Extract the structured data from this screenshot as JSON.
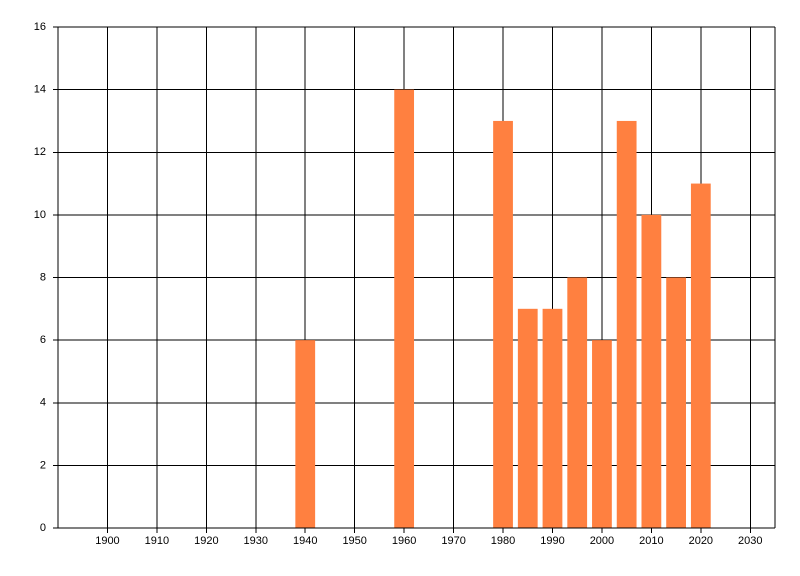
{
  "chart_data": {
    "type": "bar",
    "x": [
      1940,
      1960,
      1980,
      1985,
      1990,
      1995,
      2000,
      2005,
      2010,
      2015,
      2020
    ],
    "values": [
      6,
      14,
      13,
      7,
      7,
      8,
      6,
      13,
      10,
      8,
      11
    ],
    "color": "#ff8040",
    "xlim": [
      1890,
      2035
    ],
    "xticks": [
      1900,
      1910,
      1920,
      1930,
      1940,
      1950,
      1960,
      1970,
      1980,
      1990,
      2000,
      2010,
      2020,
      2030
    ],
    "ylim": [
      0,
      16
    ],
    "yticks": [
      0,
      2,
      4,
      6,
      8,
      10,
      12,
      14,
      16
    ],
    "grid": true
  }
}
